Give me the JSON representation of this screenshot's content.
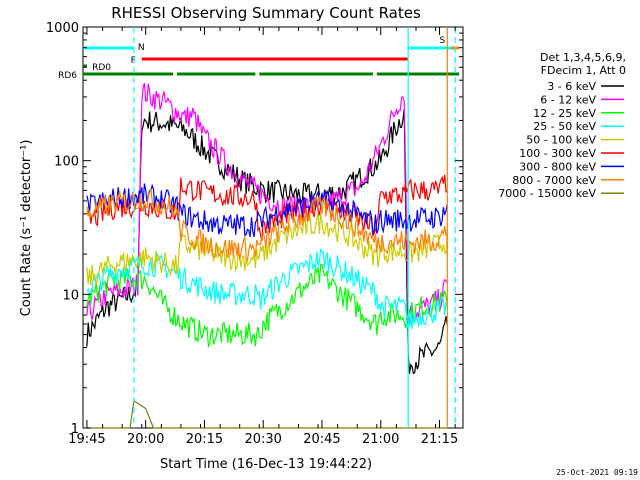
{
  "chart_data": {
    "type": "line",
    "title": "RHESSI Observing Summary Count Rates",
    "xlabel": "Start Time (16-Dec-13 19:44:22)",
    "ylabel": "Count Rate (s⁻¹ detector⁻¹)",
    "yscale": "log",
    "ylim": [
      1,
      1000
    ],
    "xlim": [
      "19:44",
      "21:21"
    ],
    "x_tick_labels": [
      "19:45",
      "20:00",
      "20:15",
      "20:30",
      "20:45",
      "21:00",
      "21:15"
    ],
    "y_tick_labels": [
      "1",
      "10",
      "100",
      "1000"
    ],
    "timestamp": "25-Oct-2021 09:19",
    "legend_header": [
      "Det 1,3,4,5,6,9,",
      "FDecim 1, Att 0"
    ],
    "legend_placement": "right",
    "series": [
      {
        "name": "3 - 6 keV",
        "color": "#000000",
        "points": [
          [
            "19:45",
            5
          ],
          [
            "19:50",
            8
          ],
          [
            "19:56",
            10
          ],
          [
            "19:58",
            11
          ],
          [
            "19:59",
            200
          ],
          [
            "20:05",
            190
          ],
          [
            "20:10",
            170
          ],
          [
            "20:15",
            120
          ],
          [
            "20:20",
            90
          ],
          [
            "20:25",
            70
          ],
          [
            "20:30",
            60
          ],
          [
            "20:40",
            55
          ],
          [
            "20:50",
            58
          ],
          [
            "21:00",
            100
          ],
          [
            "21:04",
            180
          ],
          [
            "21:06",
            230
          ],
          [
            "21:07",
            3
          ],
          [
            "21:15",
            4
          ],
          [
            "21:17",
            6
          ]
        ]
      },
      {
        "name": "6 - 12 keV",
        "color": "#ff00ff",
        "points": [
          [
            "19:45",
            7
          ],
          [
            "19:50",
            10
          ],
          [
            "19:56",
            11
          ],
          [
            "19:58",
            12
          ],
          [
            "19:59",
            330
          ],
          [
            "20:05",
            270
          ],
          [
            "20:10",
            210
          ],
          [
            "20:12",
            220
          ],
          [
            "20:15",
            150
          ],
          [
            "20:20",
            100
          ],
          [
            "20:25",
            70
          ],
          [
            "20:30",
            55
          ],
          [
            "20:35",
            45
          ],
          [
            "20:45",
            45
          ],
          [
            "20:55",
            65
          ],
          [
            "21:00",
            130
          ],
          [
            "21:04",
            250
          ],
          [
            "21:06",
            330
          ],
          [
            "21:07",
            7
          ],
          [
            "21:15",
            9
          ],
          [
            "21:17",
            12
          ]
        ]
      },
      {
        "name": "12 - 25 keV",
        "color": "#00ff00",
        "points": [
          [
            "19:45",
            9
          ],
          [
            "19:52",
            13
          ],
          [
            "20:00",
            13
          ],
          [
            "20:05",
            8
          ],
          [
            "20:10",
            6
          ],
          [
            "20:15",
            5
          ],
          [
            "20:20",
            5
          ],
          [
            "20:28",
            5
          ],
          [
            "20:29",
            5
          ],
          [
            "20:30",
            6
          ],
          [
            "20:40",
            11
          ],
          [
            "20:45",
            14
          ],
          [
            "20:50",
            10
          ],
          [
            "20:59",
            6
          ],
          [
            "21:00",
            7
          ],
          [
            "21:06",
            7
          ],
          [
            "21:07",
            7
          ],
          [
            "21:10",
            8
          ],
          [
            "21:17",
            9
          ]
        ]
      },
      {
        "name": "25 - 50 keV",
        "color": "#00ffff",
        "points": [
          [
            "19:45",
            11
          ],
          [
            "19:52",
            15
          ],
          [
            "20:00",
            17
          ],
          [
            "20:05",
            16
          ],
          [
            "20:10",
            13
          ],
          [
            "20:15",
            11
          ],
          [
            "20:20",
            10
          ],
          [
            "20:28",
            10
          ],
          [
            "20:29",
            9
          ],
          [
            "20:35",
            13
          ],
          [
            "20:45",
            19
          ],
          [
            "20:52",
            14
          ],
          [
            "20:59",
            10
          ],
          [
            "21:00",
            8
          ],
          [
            "21:06",
            8
          ],
          [
            "21:07",
            6
          ],
          [
            "21:10",
            7
          ],
          [
            "21:17",
            8
          ]
        ]
      },
      {
        "name": "50 - 100 keV",
        "color": "#cccc00",
        "points": [
          [
            "19:45",
            13
          ],
          [
            "19:52",
            17
          ],
          [
            "20:00",
            19
          ],
          [
            "20:05",
            17
          ],
          [
            "20:08",
            16
          ],
          [
            "20:09",
            24
          ],
          [
            "20:15",
            21
          ],
          [
            "20:20",
            19
          ],
          [
            "20:28",
            18
          ],
          [
            "20:29",
            19
          ],
          [
            "20:35",
            27
          ],
          [
            "20:45",
            35
          ],
          [
            "20:52",
            27
          ],
          [
            "20:59",
            19
          ],
          [
            "21:00",
            21
          ],
          [
            "21:06",
            21
          ],
          [
            "21:07",
            20
          ],
          [
            "21:10",
            21
          ],
          [
            "21:17",
            25
          ]
        ]
      },
      {
        "name": "100 - 300 keV",
        "color": "#ff0000",
        "points": [
          [
            "19:45",
            35
          ],
          [
            "19:52",
            45
          ],
          [
            "20:00",
            47
          ],
          [
            "20:05",
            43
          ],
          [
            "20:08",
            40
          ],
          [
            "20:09",
            65
          ],
          [
            "20:15",
            58
          ],
          [
            "20:20",
            55
          ],
          [
            "20:28",
            52
          ],
          [
            "20:29",
            30
          ],
          [
            "20:35",
            38
          ],
          [
            "20:45",
            48
          ],
          [
            "20:52",
            40
          ],
          [
            "20:59",
            30
          ],
          [
            "21:00",
            55
          ],
          [
            "21:06",
            55
          ],
          [
            "21:07",
            60
          ],
          [
            "21:15",
            60
          ],
          [
            "21:17",
            70
          ]
        ]
      },
      {
        "name": "300 - 800 keV",
        "color": "#0000ff",
        "points": [
          [
            "19:45",
            45
          ],
          [
            "19:52",
            52
          ],
          [
            "20:00",
            55
          ],
          [
            "20:05",
            50
          ],
          [
            "20:08",
            45
          ],
          [
            "20:09",
            40
          ],
          [
            "20:15",
            35
          ],
          [
            "20:20",
            33
          ],
          [
            "20:28",
            33
          ],
          [
            "20:29",
            35
          ],
          [
            "20:35",
            42
          ],
          [
            "20:45",
            50
          ],
          [
            "20:52",
            42
          ],
          [
            "20:59",
            33
          ],
          [
            "21:00",
            36
          ],
          [
            "21:06",
            36
          ],
          [
            "21:07",
            36
          ],
          [
            "21:15",
            38
          ],
          [
            "21:17",
            45
          ]
        ]
      },
      {
        "name": "800 - 7000 keV",
        "color": "#ff8000",
        "points": [
          [
            "19:45",
            40
          ],
          [
            "19:52",
            48
          ],
          [
            "20:00",
            52
          ],
          [
            "20:05",
            47
          ],
          [
            "20:08",
            42
          ],
          [
            "20:09",
            30
          ],
          [
            "20:15",
            24
          ],
          [
            "20:20",
            22
          ],
          [
            "20:28",
            22
          ],
          [
            "20:29",
            23
          ],
          [
            "20:35",
            32
          ],
          [
            "20:45",
            46
          ],
          [
            "20:52",
            35
          ],
          [
            "20:59",
            24
          ],
          [
            "21:00",
            25
          ],
          [
            "21:06",
            25
          ],
          [
            "21:07",
            24
          ],
          [
            "21:15",
            26
          ],
          [
            "21:17",
            30
          ]
        ]
      },
      {
        "name": "7000 - 15000 keV",
        "color": "#808000",
        "points": [
          [
            "19:45",
            1
          ],
          [
            "19:56",
            1
          ],
          [
            "19:57",
            1.6
          ],
          [
            "20:00",
            1.4
          ],
          [
            "20:02",
            1
          ],
          [
            "21:17",
            1
          ]
        ]
      }
    ],
    "bars": [
      {
        "label": "F",
        "color": "#ff0000",
        "row": 1,
        "segments": [
          [
            "19:59",
            "21:07"
          ]
        ]
      },
      {
        "label": "N",
        "color": "#00ffff",
        "row": 0,
        "segments": [
          [
            "19:44",
            "19:57"
          ],
          [
            "21:07",
            "21:20"
          ]
        ]
      },
      {
        "label": "S",
        "color": "#ff8000",
        "row": 0,
        "segments": [
          [
            "21:18",
            "21:20"
          ]
        ]
      },
      {
        "label": "RD0",
        "color": "#008000",
        "row": 2,
        "segments": [
          [
            "19:44",
            "19:45"
          ]
        ]
      },
      {
        "label": "RD6",
        "color": "#008000",
        "row": 3,
        "segments": [
          [
            "19:44",
            "20:07"
          ],
          [
            "20:08",
            "20:28"
          ],
          [
            "20:29",
            "20:58"
          ],
          [
            "20:59",
            "21:20"
          ]
        ]
      }
    ],
    "vlines": [
      {
        "t": "19:57",
        "color": "#00ffff",
        "style": "dash"
      },
      {
        "t": "21:07",
        "color": "#00ffff",
        "style": "solid"
      },
      {
        "t": "21:17",
        "color": "#ff8000",
        "style": "solid"
      },
      {
        "t": "21:19",
        "color": "#00ffff",
        "style": "dash"
      }
    ]
  }
}
